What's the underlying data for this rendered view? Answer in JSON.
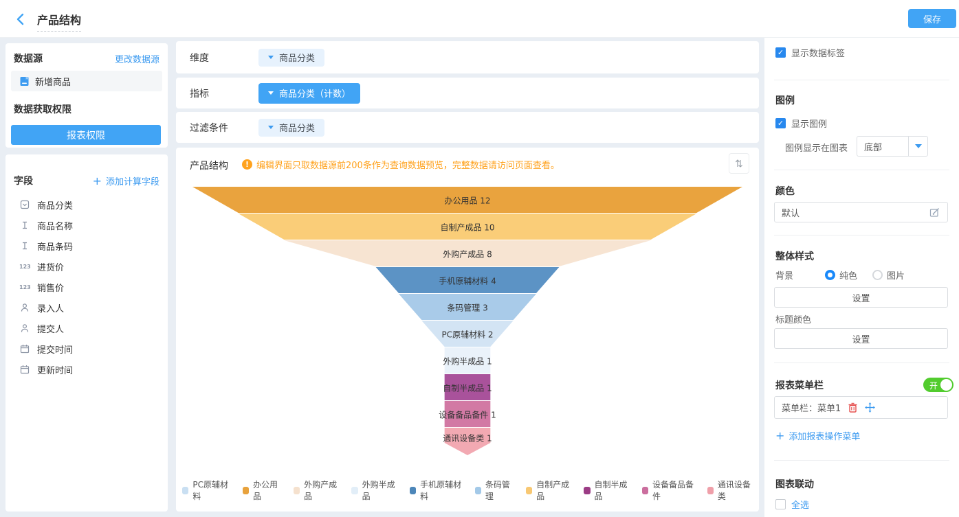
{
  "topbar": {
    "title": "产品结构",
    "save_label": "保存"
  },
  "left_panel": {
    "datasource_title": "数据源",
    "change_datasource_link": "更改数据源",
    "datasource_name": "新增商品",
    "permission_title": "数据获取权限",
    "permission_button": "报表权限",
    "fields_title": "字段",
    "add_calc_field_link": "添加计算字段",
    "fields": [
      {
        "icon": "select-icon",
        "label": "商品分类"
      },
      {
        "icon": "text-icon",
        "label": "商品名称"
      },
      {
        "icon": "text-icon",
        "label": "商品条码"
      },
      {
        "icon": "number-icon",
        "label": "进货价"
      },
      {
        "icon": "number-icon",
        "label": "销售价"
      },
      {
        "icon": "person-icon",
        "label": "录入人"
      },
      {
        "icon": "person-icon",
        "label": "提交人"
      },
      {
        "icon": "calendar-icon",
        "label": "提交时间"
      },
      {
        "icon": "calendar-icon",
        "label": "更新时间"
      }
    ]
  },
  "config_rows": [
    {
      "label": "维度",
      "value": "商品分类",
      "variant": "light"
    },
    {
      "label": "指标",
      "value": "商品分类（计数）",
      "variant": "solid"
    },
    {
      "label": "过滤条件",
      "value": "商品分类",
      "variant": "light"
    }
  ],
  "chart_card": {
    "title": "产品结构",
    "warning_text": "编辑界面只取数据源前200条作为查询数据预览，完整数据请访问页面查看。",
    "sort_icon": "⇅"
  },
  "chart_data": {
    "type": "funnel",
    "title": "产品结构",
    "categories": [
      "办公用品",
      "自制产成品",
      "外购产成品",
      "手机原辅材料",
      "条码管理",
      "PC原辅材料",
      "外购半成品",
      "自制半成品",
      "设备备品备件",
      "通讯设备类"
    ],
    "values": [
      12,
      10,
      8,
      4,
      3,
      2,
      1,
      1,
      1,
      1
    ],
    "colors": [
      "#E9A33E",
      "#FACD78",
      "#F7E4D2",
      "#5C93C5",
      "#A9CBE9",
      "#D3E4F4",
      "#EAF2FA",
      "#A9529B",
      "#D279A4",
      "#F2A9B2"
    ],
    "data_labels_shown": true,
    "legend_position": "bottom",
    "legend": [
      {
        "label": "PC原辅材料",
        "color": "#C9DFF2"
      },
      {
        "label": "办公用品",
        "color": "#E8A23C"
      },
      {
        "label": "外购产成品",
        "color": "#F5E1CE"
      },
      {
        "label": "外购半成品",
        "color": "#E2EEF8"
      },
      {
        "label": "手机原辅材料",
        "color": "#4C86B9"
      },
      {
        "label": "条码管理",
        "color": "#A3C9E8"
      },
      {
        "label": "自制产成品",
        "color": "#F8C873"
      },
      {
        "label": "自制半成品",
        "color": "#9B3C85"
      },
      {
        "label": "设备备品备件",
        "color": "#CB6E9E"
      },
      {
        "label": "通讯设备类",
        "color": "#EF9FA9"
      }
    ]
  },
  "right_panel": {
    "show_data_label": "显示数据标签",
    "legend_title": "图例",
    "show_legend": "显示图例",
    "legend_position_label": "图例显示在图表",
    "legend_position_value": "底部",
    "color_title": "颜色",
    "color_value": "默认",
    "style_title": "整体样式",
    "background_label": "背景",
    "radio_solid": "纯色",
    "radio_image": "图片",
    "bg_set_button": "设置",
    "title_color_label": "标题颜色",
    "title_set_button": "设置",
    "menu_title": "报表菜单栏",
    "menu_toggle_on": "开",
    "menu_item": "菜单栏：菜单1",
    "add_menu_link": "添加报表操作菜单",
    "linkage_title": "图表联动",
    "select_all": "全选"
  }
}
